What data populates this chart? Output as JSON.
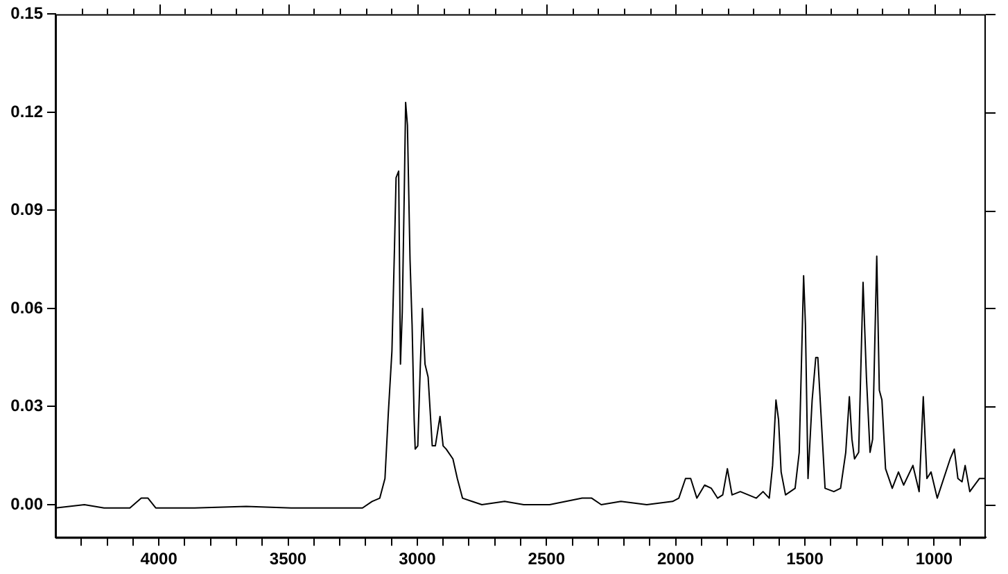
{
  "chart_data": {
    "type": "line",
    "x": [
      4400,
      4288,
      4212,
      4112,
      4068,
      4042,
      4012,
      3862,
      3662,
      3488,
      3212,
      3175,
      3145,
      3125,
      3112,
      3098,
      3088,
      3082,
      3072,
      3065,
      3058,
      3050,
      3045,
      3038,
      3028,
      3020,
      3012,
      3008,
      2998,
      2988,
      2980,
      2970,
      2958,
      2942,
      2930,
      2912,
      2900,
      2888,
      2862,
      2845,
      2825,
      2788,
      2750,
      2662,
      2588,
      2488,
      2362,
      2325,
      2288,
      2212,
      2112,
      2012,
      1988,
      1962,
      1942,
      1918,
      1888,
      1862,
      1838,
      1818,
      1800,
      1782,
      1750,
      1688,
      1662,
      1638,
      1625,
      1612,
      1602,
      1592,
      1575,
      1538,
      1522,
      1505,
      1498,
      1488,
      1472,
      1458,
      1450,
      1438,
      1422,
      1388,
      1362,
      1342,
      1328,
      1318,
      1308,
      1292,
      1275,
      1262,
      1248,
      1238,
      1222,
      1212,
      1202,
      1188,
      1162,
      1138,
      1118,
      1082,
      1058,
      1042,
      1028,
      1012,
      988,
      938,
      922,
      908,
      892,
      880,
      862,
      825,
      812,
      800
    ],
    "series": [
      {
        "color": "#000000",
        "values": [
          -0.001,
          0.0,
          -0.001,
          -0.001,
          0.002,
          0.002,
          -0.001,
          -0.001,
          -0.0005,
          -0.001,
          -0.001,
          0.001,
          0.002,
          0.008,
          0.028,
          0.047,
          0.079,
          0.1,
          0.102,
          0.043,
          0.059,
          0.097,
          0.123,
          0.116,
          0.075,
          0.055,
          0.026,
          0.017,
          0.018,
          0.043,
          0.06,
          0.043,
          0.039,
          0.018,
          0.018,
          0.027,
          0.018,
          0.017,
          0.014,
          0.008,
          0.002,
          0.001,
          0.0,
          0.001,
          0.0,
          0.0,
          0.002,
          0.002,
          0.0,
          0.001,
          0.0,
          0.001,
          0.002,
          0.008,
          0.008,
          0.002,
          0.006,
          0.005,
          0.002,
          0.003,
          0.011,
          0.003,
          0.004,
          0.002,
          0.004,
          0.002,
          0.012,
          0.032,
          0.026,
          0.01,
          0.003,
          0.005,
          0.016,
          0.07,
          0.055,
          0.008,
          0.032,
          0.045,
          0.045,
          0.028,
          0.005,
          0.004,
          0.005,
          0.016,
          0.033,
          0.02,
          0.014,
          0.016,
          0.068,
          0.039,
          0.016,
          0.02,
          0.076,
          0.035,
          0.032,
          0.011,
          0.005,
          0.01,
          0.006,
          0.012,
          0.004,
          0.033,
          0.008,
          0.01,
          0.002,
          0.014,
          0.017,
          0.008,
          0.007,
          0.012,
          0.004,
          0.008,
          0.008,
          0.008
        ]
      }
    ],
    "xlim": [
      4400,
      800
    ],
    "xticks": [
      {
        "value": 4300,
        "label": null
      },
      {
        "value": 4200,
        "label": null
      },
      {
        "value": 4100,
        "label": null
      },
      4000,
      {
        "value": 3900,
        "label": null
      },
      {
        "value": 3800,
        "label": null
      },
      {
        "value": 3700,
        "label": null
      },
      {
        "value": 3600,
        "label": null
      },
      3500,
      {
        "value": 3400,
        "label": null
      },
      {
        "value": 3300,
        "label": null
      },
      {
        "value": 3200,
        "label": null
      },
      {
        "value": 3100,
        "label": null
      },
      3000,
      {
        "value": 2900,
        "label": null
      },
      {
        "value": 2800,
        "label": null
      },
      {
        "value": 2700,
        "label": null
      },
      {
        "value": 2600,
        "label": null
      },
      2500,
      {
        "value": 2400,
        "label": null
      },
      {
        "value": 2300,
        "label": null
      },
      {
        "value": 2200,
        "label": null
      },
      {
        "value": 2100,
        "label": null
      },
      2000,
      {
        "value": 1900,
        "label": null
      },
      {
        "value": 1800,
        "label": null
      },
      {
        "value": 1700,
        "label": null
      },
      {
        "value": 1600,
        "label": null
      },
      1500,
      {
        "value": 1400,
        "label": null
      },
      {
        "value": 1300,
        "label": null
      },
      {
        "value": 1200,
        "label": null
      },
      {
        "value": 1100,
        "label": null
      },
      1000,
      {
        "value": 900,
        "label": null
      }
    ],
    "ylim": [
      -0.01,
      0.15
    ],
    "yticks": [
      {
        "value": 0,
        "label": "0.00"
      },
      {
        "value": 0.03,
        "label": "0.03"
      },
      {
        "value": 0.06,
        "label": "0.06"
      },
      {
        "value": 0.09,
        "label": "0.09"
      },
      {
        "value": 0.12,
        "label": "0.12"
      },
      {
        "value": 0.15,
        "label": "0.15"
      }
    ],
    "grid": false,
    "legend": false,
    "marker": "none",
    "line_style": "solid"
  }
}
